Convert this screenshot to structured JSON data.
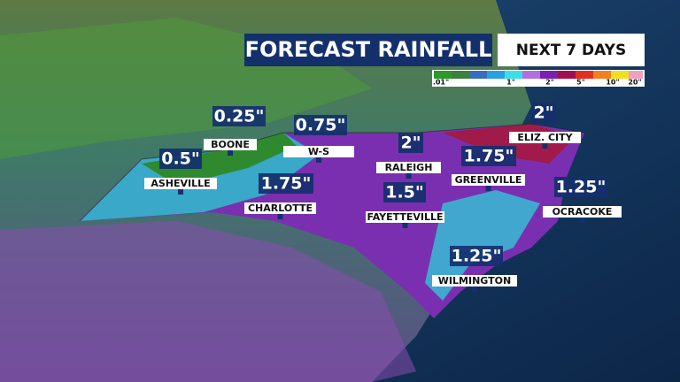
{
  "header": {
    "title": "FORECAST RAINFALL",
    "subtitle": "NEXT 7 DAYS"
  },
  "legend": {
    "labels": [
      ".01\"",
      "1\"",
      "2\"",
      "5\"",
      "10\"",
      "20\""
    ]
  },
  "cities": [
    {
      "name": "BOONE",
      "amount": "0.25\""
    },
    {
      "name": "W-S",
      "amount": "0.75\""
    },
    {
      "name": "ASHEVILLE",
      "amount": "0.5\""
    },
    {
      "name": "CHARLOTTE",
      "amount": "1.75\""
    },
    {
      "name": "RALEIGH",
      "amount": "2\""
    },
    {
      "name": "FAYETTEVILLE",
      "amount": "1.5\""
    },
    {
      "name": "GREENVILLE",
      "amount": "1.75\""
    },
    {
      "name": "ELIZ. CITY",
      "amount": "2\""
    },
    {
      "name": "OCRACOKE",
      "amount": "1.25\""
    },
    {
      "name": "WILMINGTON",
      "amount": "1.25\""
    }
  ]
}
